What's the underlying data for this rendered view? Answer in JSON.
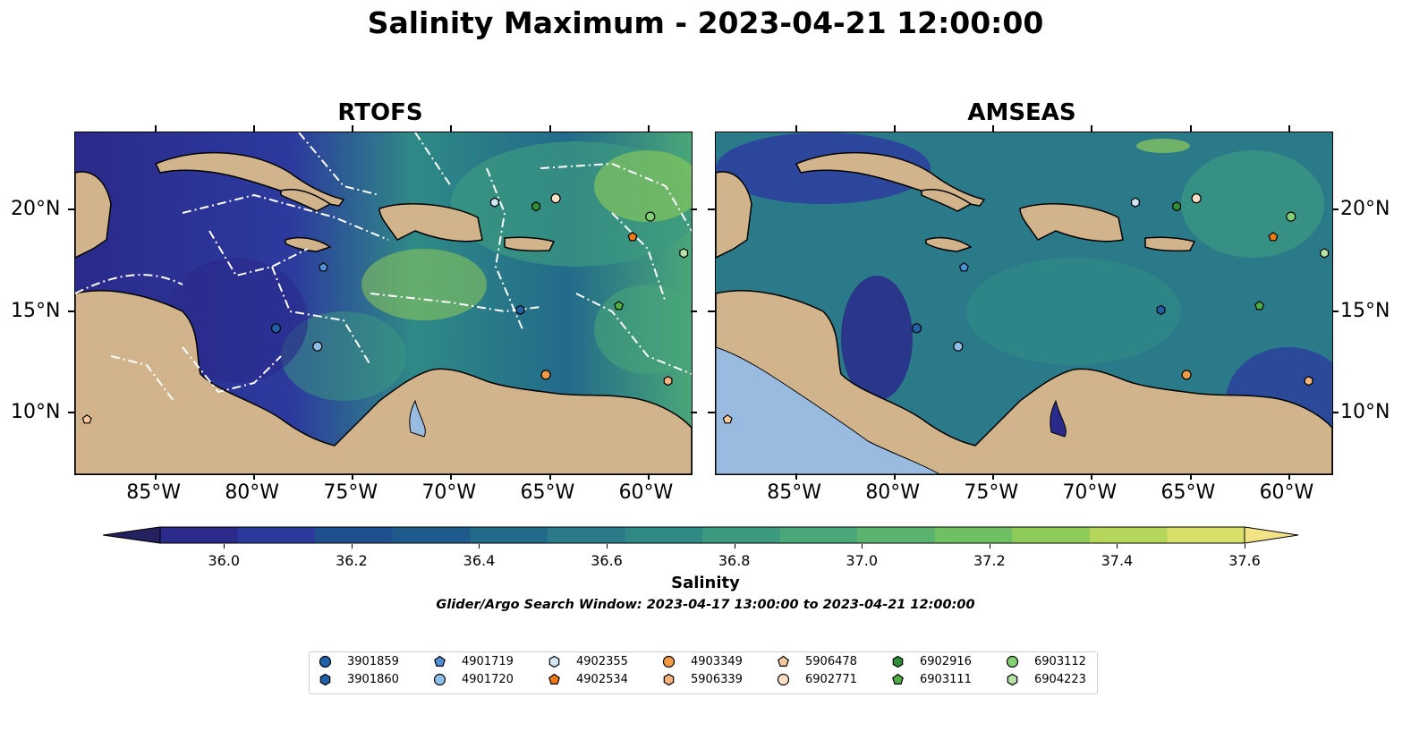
{
  "title": "Salinity Maximum - 2023-04-21 12:00:00",
  "panels": [
    {
      "title": "RTOFS"
    },
    {
      "title": "AMSEAS"
    }
  ],
  "axes": {
    "lon_labels": [
      "85°W",
      "80°W",
      "75°W",
      "70°W",
      "65°W",
      "60°W"
    ],
    "lat_labels": [
      "20°N",
      "15°N",
      "10°N"
    ]
  },
  "colorbar": {
    "label": "Salinity",
    "ticks": [
      "36.0",
      "36.2",
      "36.4",
      "36.6",
      "36.8",
      "37.0",
      "37.2",
      "37.4",
      "37.6"
    ],
    "range": [
      35.9,
      37.6
    ],
    "colors": [
      "#252060",
      "#2a2a8a",
      "#2c3a9e",
      "#1f4f8e",
      "#1e5b8c",
      "#226a8a",
      "#2a7a8a",
      "#2f8a86",
      "#3c9a80",
      "#49a778",
      "#5ab46f",
      "#6fc062",
      "#8fcb58",
      "#b4d65a",
      "#d8e06a",
      "#f3e387"
    ],
    "extend": "both"
  },
  "search_window": "Glider/Argo Search Window: 2023-04-17 13:00:00 to 2023-04-21 12:00:00",
  "legend": {
    "entries": [
      {
        "id": "3901859",
        "marker": "circle",
        "color": "#1f62a8"
      },
      {
        "id": "3901860",
        "marker": "hexagon",
        "color": "#1f62a8"
      },
      {
        "id": "4901719",
        "marker": "pentagon",
        "color": "#4f92d8"
      },
      {
        "id": "4901720",
        "marker": "circle",
        "color": "#8fbfe8"
      },
      {
        "id": "4902355",
        "marker": "hexagon",
        "color": "#cfe6f7"
      },
      {
        "id": "4902534",
        "marker": "pentagon",
        "color": "#f07b12"
      },
      {
        "id": "4903349",
        "marker": "circle",
        "color": "#f29a46"
      },
      {
        "id": "5906339",
        "marker": "hexagon",
        "color": "#f7b37c"
      },
      {
        "id": "5906478",
        "marker": "pentagon",
        "color": "#f9c99e"
      },
      {
        "id": "6902771",
        "marker": "circle",
        "color": "#fcdfc5"
      },
      {
        "id": "6902916",
        "marker": "hexagon",
        "color": "#2e8f35"
      },
      {
        "id": "6903111",
        "marker": "pentagon",
        "color": "#4fad45"
      },
      {
        "id": "6903112",
        "marker": "circle",
        "color": "#83cf73"
      },
      {
        "id": "6904223",
        "marker": "hexagon",
        "color": "#b7e2a6"
      }
    ]
  },
  "floats": [
    {
      "id": "3901859",
      "lon": -78.9,
      "lat": 14.2
    },
    {
      "id": "3901860",
      "lon": -66.5,
      "lat": 15.1
    },
    {
      "id": "4901719",
      "lon": -76.5,
      "lat": 17.2
    },
    {
      "id": "4901720",
      "lon": -76.8,
      "lat": 13.3
    },
    {
      "id": "4902355",
      "lon": -67.8,
      "lat": 20.4
    },
    {
      "id": "4902534",
      "lon": -60.8,
      "lat": 18.7
    },
    {
      "id": "4903349",
      "lon": -65.2,
      "lat": 11.9
    },
    {
      "id": "5906339",
      "lon": -59.0,
      "lat": 11.6
    },
    {
      "id": "5906478",
      "lon": -88.5,
      "lat": 9.7
    },
    {
      "id": "6902771",
      "lon": -64.7,
      "lat": 20.6
    },
    {
      "id": "6902916",
      "lon": -65.7,
      "lat": 20.2
    },
    {
      "id": "6903111",
      "lon": -61.5,
      "lat": 15.3
    },
    {
      "id": "6903112",
      "lon": -59.9,
      "lat": 19.7
    },
    {
      "id": "6904223",
      "lon": -58.2,
      "lat": 17.9
    }
  ]
}
